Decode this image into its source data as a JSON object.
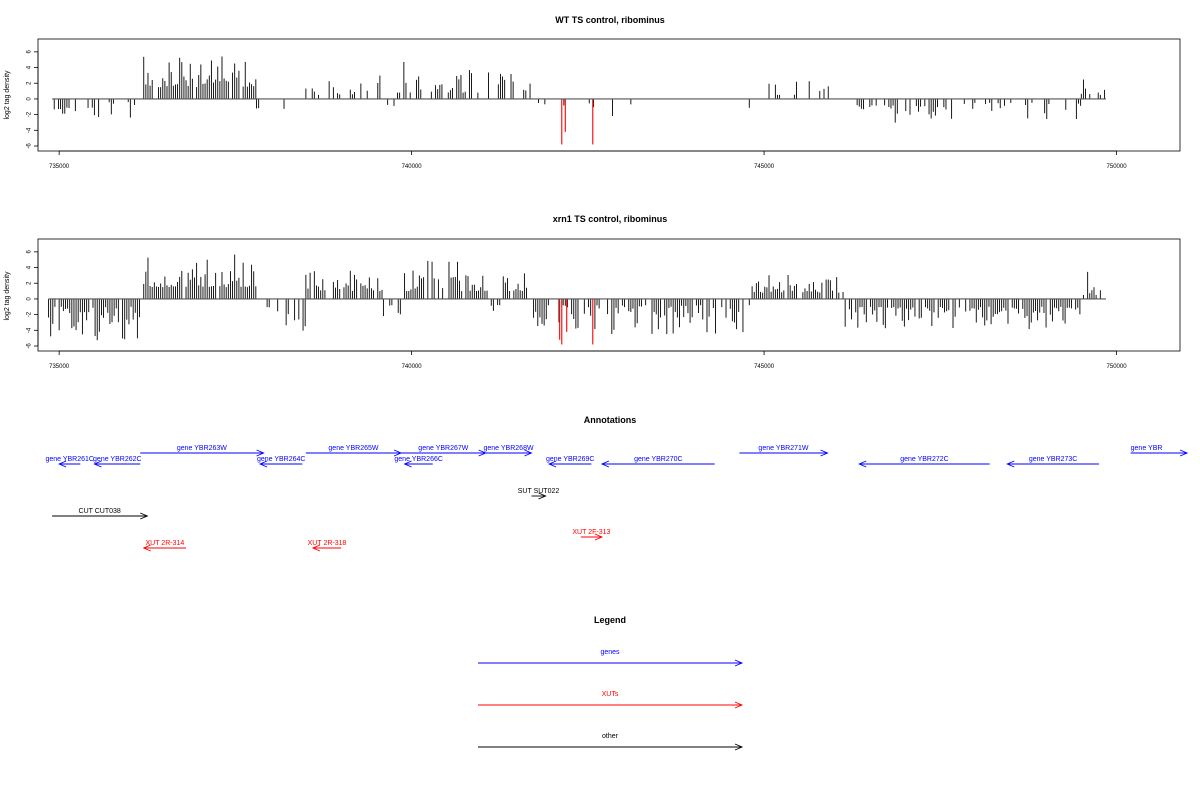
{
  "chart_data": [
    {
      "type": "bar",
      "title": "WT TS control, ribominus",
      "ylabel": "log2 tag density",
      "xlim": [
        734700,
        750900
      ],
      "ylim": [
        -6,
        7
      ],
      "xticks": [
        735000,
        740000,
        745000,
        750000
      ],
      "xtick_labels": [
        "735000",
        "740000",
        "745000",
        "750000"
      ],
      "yticks": [
        -6,
        -4,
        -2,
        0,
        2,
        4,
        6
      ],
      "ytick_labels": [
        "-6",
        "-4",
        "-2",
        "0",
        "2",
        "4",
        "6"
      ],
      "colors": {
        "bars": "#000000",
        "highlight": "#ff0000"
      },
      "regions": [
        {
          "from": 734900,
          "to": 735500,
          "sign": -1,
          "lo": 1,
          "hi": 3.2,
          "density": 0.45
        },
        {
          "from": 735500,
          "to": 736100,
          "sign": -1,
          "lo": 0.4,
          "hi": 3.8,
          "density": 0.25
        },
        {
          "from": 736200,
          "to": 737800,
          "sign": 1,
          "lo": 1.5,
          "hi": 5.5,
          "density": 0.9
        },
        {
          "from": 737800,
          "to": 738400,
          "sign": -1,
          "lo": 1,
          "hi": 3.4,
          "density": 0.2
        },
        {
          "from": 738500,
          "to": 739600,
          "sign": 1,
          "lo": 0.5,
          "hi": 3.8,
          "density": 0.4
        },
        {
          "from": 739600,
          "to": 739800,
          "sign": -1,
          "lo": 0.5,
          "hi": 1.8,
          "density": 0.3
        },
        {
          "from": 739800,
          "to": 741100,
          "sign": 1,
          "lo": 0.8,
          "hi": 5,
          "density": 0.55
        },
        {
          "from": 741200,
          "to": 741700,
          "sign": 1,
          "lo": 0.5,
          "hi": 3.5,
          "density": 0.45
        },
        {
          "from": 741800,
          "to": 742900,
          "sign": -1,
          "lo": 0.5,
          "hi": 2.4,
          "density": 0.15
        },
        {
          "from": 742900,
          "to": 743500,
          "sign": -1,
          "lo": 0.5,
          "hi": 1.8,
          "density": 0.1
        },
        {
          "from": 743800,
          "to": 744800,
          "sign": -1,
          "lo": 0.5,
          "hi": 1.6,
          "density": 0.12
        },
        {
          "from": 744800,
          "to": 746000,
          "sign": 1,
          "lo": 0.5,
          "hi": 2.6,
          "density": 0.15
        },
        {
          "from": 746200,
          "to": 747600,
          "sign": -1,
          "lo": 0.8,
          "hi": 3.4,
          "density": 0.5
        },
        {
          "from": 747600,
          "to": 749500,
          "sign": -1,
          "lo": 0.5,
          "hi": 2.6,
          "density": 0.35
        },
        {
          "from": 749500,
          "to": 749850,
          "sign": 1,
          "lo": 0.5,
          "hi": 3,
          "density": 0.3
        }
      ],
      "highlights": [
        {
          "x": 742130,
          "y": -5.8
        },
        {
          "x": 742180,
          "y": -4.2
        },
        {
          "x": 742570,
          "y": -5.8
        }
      ]
    },
    {
      "type": "bar",
      "title": "xrn1 TS control, ribominus",
      "ylabel": "log2 tag density",
      "xlim": [
        734700,
        750900
      ],
      "ylim": [
        -6,
        7
      ],
      "xticks": [
        735000,
        740000,
        745000,
        750000
      ],
      "xtick_labels": [
        "735000",
        "740000",
        "745000",
        "750000"
      ],
      "yticks": [
        -6,
        -4,
        -2,
        0,
        2,
        4,
        6
      ],
      "ytick_labels": [
        "-6",
        "-4",
        "-2",
        "0",
        "2",
        "4",
        "6"
      ],
      "colors": {
        "bars": "#000000",
        "highlight": "#ff0000"
      },
      "regions": [
        {
          "from": 734850,
          "to": 736150,
          "sign": -1,
          "lo": 1,
          "hi": 5.5,
          "density": 0.9
        },
        {
          "from": 736200,
          "to": 737800,
          "sign": 1,
          "lo": 1.5,
          "hi": 6,
          "density": 0.95
        },
        {
          "from": 737800,
          "to": 738500,
          "sign": -1,
          "lo": 0.8,
          "hi": 5,
          "density": 0.45
        },
        {
          "from": 738500,
          "to": 739600,
          "sign": 1,
          "lo": 1,
          "hi": 3.6,
          "density": 0.9
        },
        {
          "from": 739600,
          "to": 739900,
          "sign": -1,
          "lo": 0.8,
          "hi": 3.5,
          "density": 0.5
        },
        {
          "from": 739900,
          "to": 741100,
          "sign": 1,
          "lo": 1,
          "hi": 5,
          "density": 0.9
        },
        {
          "from": 741100,
          "to": 741300,
          "sign": -1,
          "lo": 0.5,
          "hi": 2,
          "density": 0.4
        },
        {
          "from": 741300,
          "to": 741650,
          "sign": 1,
          "lo": 1,
          "hi": 4.5,
          "density": 0.8
        },
        {
          "from": 741700,
          "to": 744800,
          "sign": -1,
          "lo": 0.8,
          "hi": 4.5,
          "density": 0.75
        },
        {
          "from": 744800,
          "to": 746150,
          "sign": 1,
          "lo": 0.8,
          "hi": 3.2,
          "density": 0.8
        },
        {
          "from": 746150,
          "to": 749500,
          "sign": -1,
          "lo": 1,
          "hi": 4,
          "density": 0.9
        },
        {
          "from": 749500,
          "to": 749850,
          "sign": 1,
          "lo": 0.5,
          "hi": 4,
          "density": 0.5
        }
      ],
      "highlights": [
        {
          "x": 742100,
          "y": -5.2
        },
        {
          "x": 742130,
          "y": -5.8
        },
        {
          "x": 742200,
          "y": -4.2
        },
        {
          "x": 742570,
          "y": -5.8
        }
      ]
    }
  ],
  "annotations": {
    "title": "Annotations",
    "genome_range": [
      734700,
      750900
    ],
    "colors": {
      "gene": "#0000ff",
      "xut": "#ff0000",
      "other": "#000000"
    },
    "features": [
      {
        "label": "gene YBR261C",
        "kind": "gene",
        "start": 735000,
        "end": 735300,
        "strand": "-",
        "row": 1
      },
      {
        "label": "gene YBR262C",
        "kind": "gene",
        "start": 735500,
        "end": 736150,
        "strand": "-",
        "row": 1
      },
      {
        "label": "gene YBR263W",
        "kind": "gene",
        "start": 736150,
        "end": 737900,
        "strand": "+",
        "row": 0
      },
      {
        "label": "gene YBR264C",
        "kind": "gene",
        "start": 737850,
        "end": 738450,
        "strand": "-",
        "row": 1
      },
      {
        "label": "gene YBR265W",
        "kind": "gene",
        "start": 738500,
        "end": 739850,
        "strand": "+",
        "row": 0
      },
      {
        "label": "gene YBR266C",
        "kind": "gene",
        "start": 739900,
        "end": 740300,
        "strand": "-",
        "row": 1
      },
      {
        "label": "gene YBR267W",
        "kind": "gene",
        "start": 739850,
        "end": 741050,
        "strand": "+",
        "row": 0
      },
      {
        "label": "gene YBR268W",
        "kind": "gene",
        "start": 741050,
        "end": 741700,
        "strand": "+",
        "row": 0
      },
      {
        "label": "gene YBR269C",
        "kind": "gene",
        "start": 741950,
        "end": 742550,
        "strand": "-",
        "row": 1
      },
      {
        "label": "gene YBR270C",
        "kind": "gene",
        "start": 742700,
        "end": 744300,
        "strand": "-",
        "row": 1
      },
      {
        "label": "gene YBR271W",
        "kind": "gene",
        "start": 744650,
        "end": 745900,
        "strand": "+",
        "row": 0
      },
      {
        "label": "gene YBR272C",
        "kind": "gene",
        "start": 746350,
        "end": 748200,
        "strand": "-",
        "row": 1
      },
      {
        "label": "gene YBR273C",
        "kind": "gene",
        "start": 748450,
        "end": 749750,
        "strand": "-",
        "row": 1
      },
      {
        "label": "gene YBR",
        "kind": "gene",
        "start": 750200,
        "end": 751000,
        "strand": "+",
        "row": 0
      },
      {
        "label": "SUT SUT022",
        "kind": "other",
        "start": 741700,
        "end": 741900,
        "strand": "+",
        "row": 3
      },
      {
        "label": "CUT CUT038",
        "kind": "other",
        "start": 734900,
        "end": 736250,
        "strand": "+",
        "row": 4
      },
      {
        "label": "XUT 2R-314",
        "kind": "xut",
        "start": 736200,
        "end": 736800,
        "strand": "-",
        "row": 5
      },
      {
        "label": "XUT 2R-318",
        "kind": "xut",
        "start": 738600,
        "end": 739000,
        "strand": "-",
        "row": 5
      },
      {
        "label": "XUT 2F-313",
        "kind": "xut",
        "start": 742400,
        "end": 742700,
        "strand": "+",
        "row": 6
      }
    ]
  },
  "legend": {
    "title": "Legend",
    "items": [
      {
        "label": "genes",
        "color": "#0000ff"
      },
      {
        "label": "XUTs",
        "color": "#ff0000"
      },
      {
        "label": "other",
        "color": "#000000"
      }
    ]
  }
}
